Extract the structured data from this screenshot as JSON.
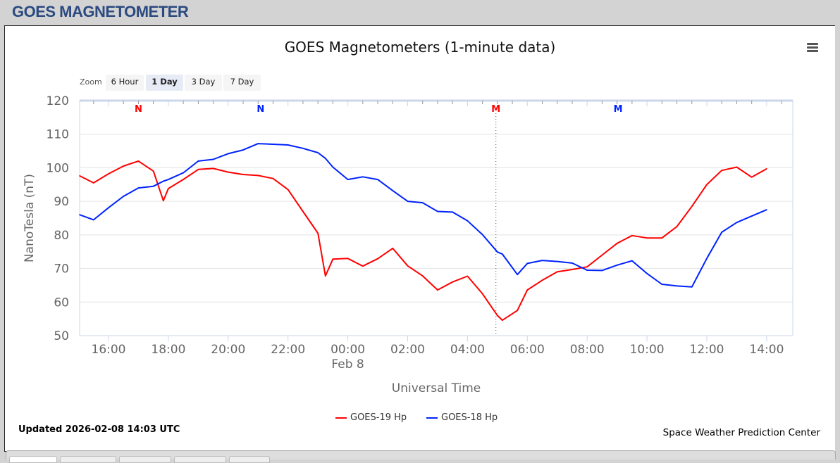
{
  "header": {
    "title": "GOES MAGNETOMETER"
  },
  "zoom": {
    "label": "Zoom",
    "buttons": [
      "6 Hour",
      "1 Day",
      "3 Day",
      "7 Day"
    ],
    "selected": "1 Day"
  },
  "menu_icon": "hamburger-menu-icon",
  "footer": {
    "updated": "Updated 2026-02-08 14:03 UTC",
    "credit": "Space Weather Prediction Center"
  },
  "chart_data": {
    "type": "line",
    "title": "GOES Magnetometers (1-minute data)",
    "xlabel": "Universal Time",
    "ylabel": "NanoTesla (nT)",
    "ylim": [
      50,
      120
    ],
    "yticks": [
      "50",
      "60",
      "70",
      "80",
      "90",
      "100",
      "110",
      "120"
    ],
    "xlim": [
      "2026-02-07T15:02",
      "2026-02-08T14:52"
    ],
    "xticks": [
      "16:00",
      "18:00",
      "20:00",
      "22:00",
      "00:00",
      "02:00",
      "04:00",
      "06:00",
      "08:00",
      "10:00",
      "12:00",
      "14:00"
    ],
    "xtick_sublabel": {
      "tick": "00:00",
      "text": "Feb 8"
    },
    "grid": true,
    "legend_position": "bottom",
    "x": [
      "2026-02-07T15:02",
      "2026-02-07T15:30",
      "2026-02-07T16:00",
      "2026-02-07T16:30",
      "2026-02-07T17:00",
      "2026-02-07T17:30",
      "2026-02-07T17:50",
      "2026-02-07T18:00",
      "2026-02-07T18:30",
      "2026-02-07T19:00",
      "2026-02-07T19:30",
      "2026-02-07T20:00",
      "2026-02-07T20:30",
      "2026-02-07T21:00",
      "2026-02-07T21:30",
      "2026-02-07T22:00",
      "2026-02-07T22:30",
      "2026-02-07T23:00",
      "2026-02-07T23:15",
      "2026-02-07T23:30",
      "2026-02-08T00:00",
      "2026-02-08T00:30",
      "2026-02-08T01:00",
      "2026-02-08T01:30",
      "2026-02-08T02:00",
      "2026-02-08T02:30",
      "2026-02-08T03:00",
      "2026-02-08T03:30",
      "2026-02-08T04:00",
      "2026-02-08T04:30",
      "2026-02-08T05:00",
      "2026-02-08T05:10",
      "2026-02-08T05:40",
      "2026-02-08T06:00",
      "2026-02-08T06:30",
      "2026-02-08T07:00",
      "2026-02-08T07:30",
      "2026-02-08T08:00",
      "2026-02-08T08:30",
      "2026-02-08T09:00",
      "2026-02-08T09:30",
      "2026-02-08T10:00",
      "2026-02-08T10:30",
      "2026-02-08T11:00",
      "2026-02-08T11:30",
      "2026-02-08T12:00",
      "2026-02-08T12:30",
      "2026-02-08T13:00",
      "2026-02-08T13:30",
      "2026-02-08T14:00"
    ],
    "series": [
      {
        "name": "GOES-19 Hp",
        "color": "#ff0000",
        "values": [
          97.6,
          95.5,
          98.2,
          100.5,
          102,
          99,
          90.2,
          93.8,
          96.5,
          99.5,
          99.8,
          98.7,
          98,
          97.7,
          96.8,
          93.5,
          87,
          80.5,
          67.8,
          72.8,
          73,
          70.7,
          72.9,
          76,
          70.8,
          67.8,
          63.6,
          66,
          67.7,
          62.5,
          56,
          54.6,
          57.5,
          63.6,
          66.5,
          69,
          69.7,
          70.5,
          74,
          77.5,
          79.8,
          79.1,
          79.1,
          82.5,
          88.5,
          95,
          99.2,
          100.2,
          97.2,
          99.7
        ]
      },
      {
        "name": "GOES-18 Hp",
        "color": "#0022ff",
        "values": [
          86,
          84.5,
          88.1,
          91.5,
          94,
          94.5,
          96,
          96.5,
          98.5,
          102,
          102.5,
          104.2,
          105.3,
          107.2,
          107,
          106.8,
          105.8,
          104.5,
          102.8,
          100.2,
          96.5,
          97.3,
          96.5,
          93.2,
          90,
          89.6,
          87,
          86.8,
          84.2,
          80.1,
          74.9,
          74.3,
          68.2,
          71.5,
          72.4,
          72.1,
          71.6,
          69.5,
          69.4,
          71,
          72.3,
          68.5,
          65.3,
          64.8,
          64.5,
          73,
          80.8,
          83.7,
          85.6,
          87.5
        ]
      }
    ],
    "annotations": [
      {
        "text": "N",
        "x": "2026-02-07T17:00",
        "color": "#ff0000"
      },
      {
        "text": "N",
        "x": "2026-02-07T21:05",
        "color": "#0022ff"
      },
      {
        "text": "M",
        "x": "2026-02-08T04:57",
        "color": "#ff0000",
        "dotted_line": true
      },
      {
        "text": "M",
        "x": "2026-02-08T09:02",
        "color": "#0022ff"
      }
    ]
  }
}
